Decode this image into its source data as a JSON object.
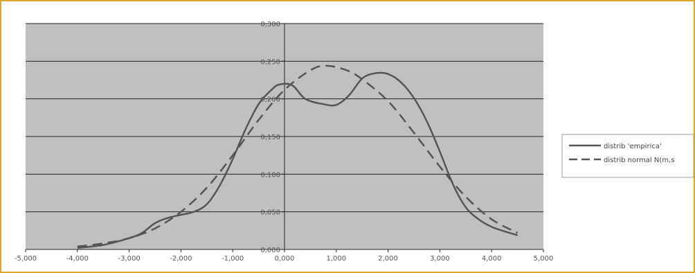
{
  "chart_data": {
    "type": "line",
    "title": "",
    "xlabel": "",
    "ylabel": "",
    "xlim": [
      -5,
      5
    ],
    "ylim": [
      0,
      0.3
    ],
    "x_ticks": [
      "-5,000",
      "-4,000",
      "-3,000",
      "-2,000",
      "-1,000",
      "0,000",
      "1,000",
      "2,000",
      "3,000",
      "4,000",
      "5,000"
    ],
    "y_ticks": [
      "0,000",
      "0,050",
      "0,100",
      "0,150",
      "0,200",
      "0,250",
      "0,300"
    ],
    "grid": "horizontal",
    "plot_background": "#c0c0c0",
    "legend_position": "right",
    "series": [
      {
        "name": "distrib 'empirica'",
        "style": "solid",
        "color": "#555555",
        "points": [
          [
            -4.0,
            0.002
          ],
          [
            -3.5,
            0.006
          ],
          [
            -3.0,
            0.015
          ],
          [
            -2.75,
            0.022
          ],
          [
            -2.5,
            0.035
          ],
          [
            -2.25,
            0.042
          ],
          [
            -2.0,
            0.046
          ],
          [
            -1.75,
            0.05
          ],
          [
            -1.5,
            0.06
          ],
          [
            -1.25,
            0.085
          ],
          [
            -1.0,
            0.12
          ],
          [
            -0.75,
            0.16
          ],
          [
            -0.5,
            0.193
          ],
          [
            -0.25,
            0.212
          ],
          [
            -0.1,
            0.219
          ],
          [
            0.15,
            0.218
          ],
          [
            0.4,
            0.2
          ],
          [
            0.75,
            0.193
          ],
          [
            1.0,
            0.192
          ],
          [
            1.25,
            0.205
          ],
          [
            1.5,
            0.227
          ],
          [
            1.75,
            0.234
          ],
          [
            2.0,
            0.233
          ],
          [
            2.25,
            0.222
          ],
          [
            2.5,
            0.201
          ],
          [
            2.75,
            0.17
          ],
          [
            3.0,
            0.13
          ],
          [
            3.25,
            0.087
          ],
          [
            3.5,
            0.056
          ],
          [
            3.75,
            0.04
          ],
          [
            4.0,
            0.03
          ],
          [
            4.25,
            0.024
          ],
          [
            4.5,
            0.019
          ]
        ]
      },
      {
        "name": "distrib normal N(m,s",
        "style": "dashed",
        "color": "#555555",
        "points": [
          [
            -4.0,
            0.004
          ],
          [
            -3.5,
            0.008
          ],
          [
            -3.0,
            0.015
          ],
          [
            -2.5,
            0.028
          ],
          [
            -2.0,
            0.05
          ],
          [
            -1.5,
            0.082
          ],
          [
            -1.0,
            0.125
          ],
          [
            -0.5,
            0.172
          ],
          [
            0.0,
            0.212
          ],
          [
            0.5,
            0.238
          ],
          [
            0.8,
            0.244
          ],
          [
            1.2,
            0.238
          ],
          [
            1.5,
            0.226
          ],
          [
            2.0,
            0.197
          ],
          [
            2.5,
            0.155
          ],
          [
            3.0,
            0.11
          ],
          [
            3.5,
            0.07
          ],
          [
            4.0,
            0.04
          ],
          [
            4.5,
            0.022
          ]
        ]
      }
    ]
  }
}
